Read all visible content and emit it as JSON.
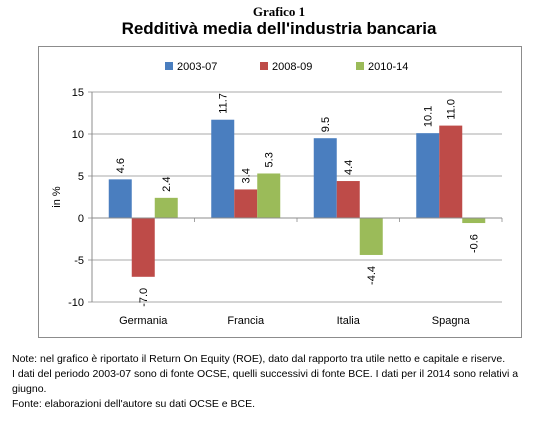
{
  "header": {
    "grafico": "Grafico 1",
    "title": "Redditivà media dell'industria bancaria"
  },
  "chart_data": {
    "type": "bar",
    "title": "Redditivà media dell'industria bancaria",
    "ylabel": "in %",
    "xlabel": "",
    "ylim": [
      -10,
      15
    ],
    "yticks": [
      -10,
      -5,
      0,
      5,
      10,
      15
    ],
    "ytick_labels": [
      "-10",
      "-5",
      "0",
      "5",
      "10",
      "15"
    ],
    "grid": true,
    "legend_position": "top",
    "categories": [
      "Germania",
      "Francia",
      "Italia",
      "Spagna"
    ],
    "series": [
      {
        "name": "2003-07",
        "color": "#4a7ebf",
        "values": [
          4.6,
          11.7,
          9.5,
          10.1
        ],
        "labels": [
          "4.6",
          "11.7",
          "9.5",
          "10.1"
        ]
      },
      {
        "name": "2008-09",
        "color": "#be4b48",
        "values": [
          -7.0,
          3.4,
          4.4,
          11.0
        ],
        "labels": [
          "-7.0",
          "3.4",
          "4.4",
          "11.0"
        ]
      },
      {
        "name": "2010-14",
        "color": "#9bbb59",
        "values": [
          2.4,
          5.3,
          -4.4,
          -0.6
        ],
        "labels": [
          "2.4",
          "5.3",
          "-4.4",
          "-0.6"
        ]
      }
    ]
  },
  "notes": {
    "line1": "Note: nel grafico è riportato il Return On Equity (ROE), dato dal rapporto tra utile netto e capitale e riserve.",
    "line2": "I dati del periodo 2003-07 sono di fonte OCSE, quelli successivi di fonte BCE. I dati per il 2014 sono relativi a giugno.",
    "line3": "Fonte: elaborazioni dell'autore su dati OCSE e BCE."
  }
}
